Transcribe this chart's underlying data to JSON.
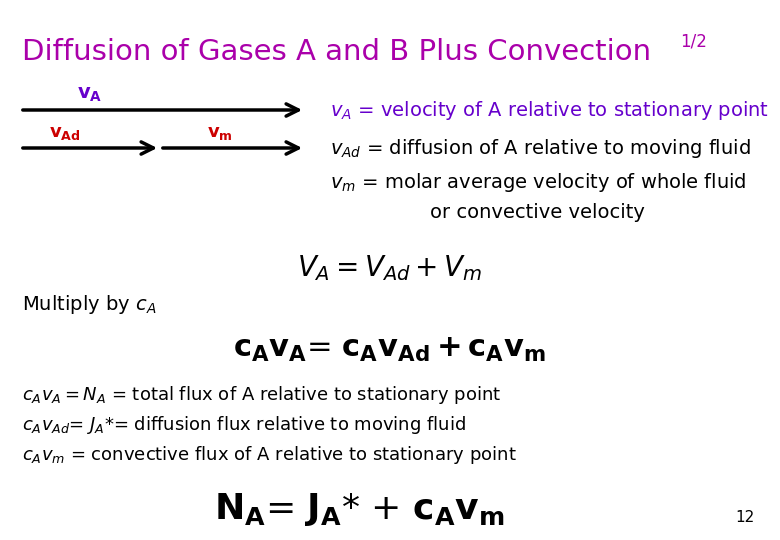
{
  "title": "Diffusion of Gases A and B Plus Convection",
  "title_sup": "1/2",
  "title_color": "#AA00AA",
  "background_color": "#FFFFFF",
  "arrow_color": "#000000",
  "vA_label_color": "#6600CC",
  "vAd_vm_label_color": "#CC0000",
  "def_text_color": "#6600CC",
  "black_text_color": "#000000",
  "page_number": "12"
}
